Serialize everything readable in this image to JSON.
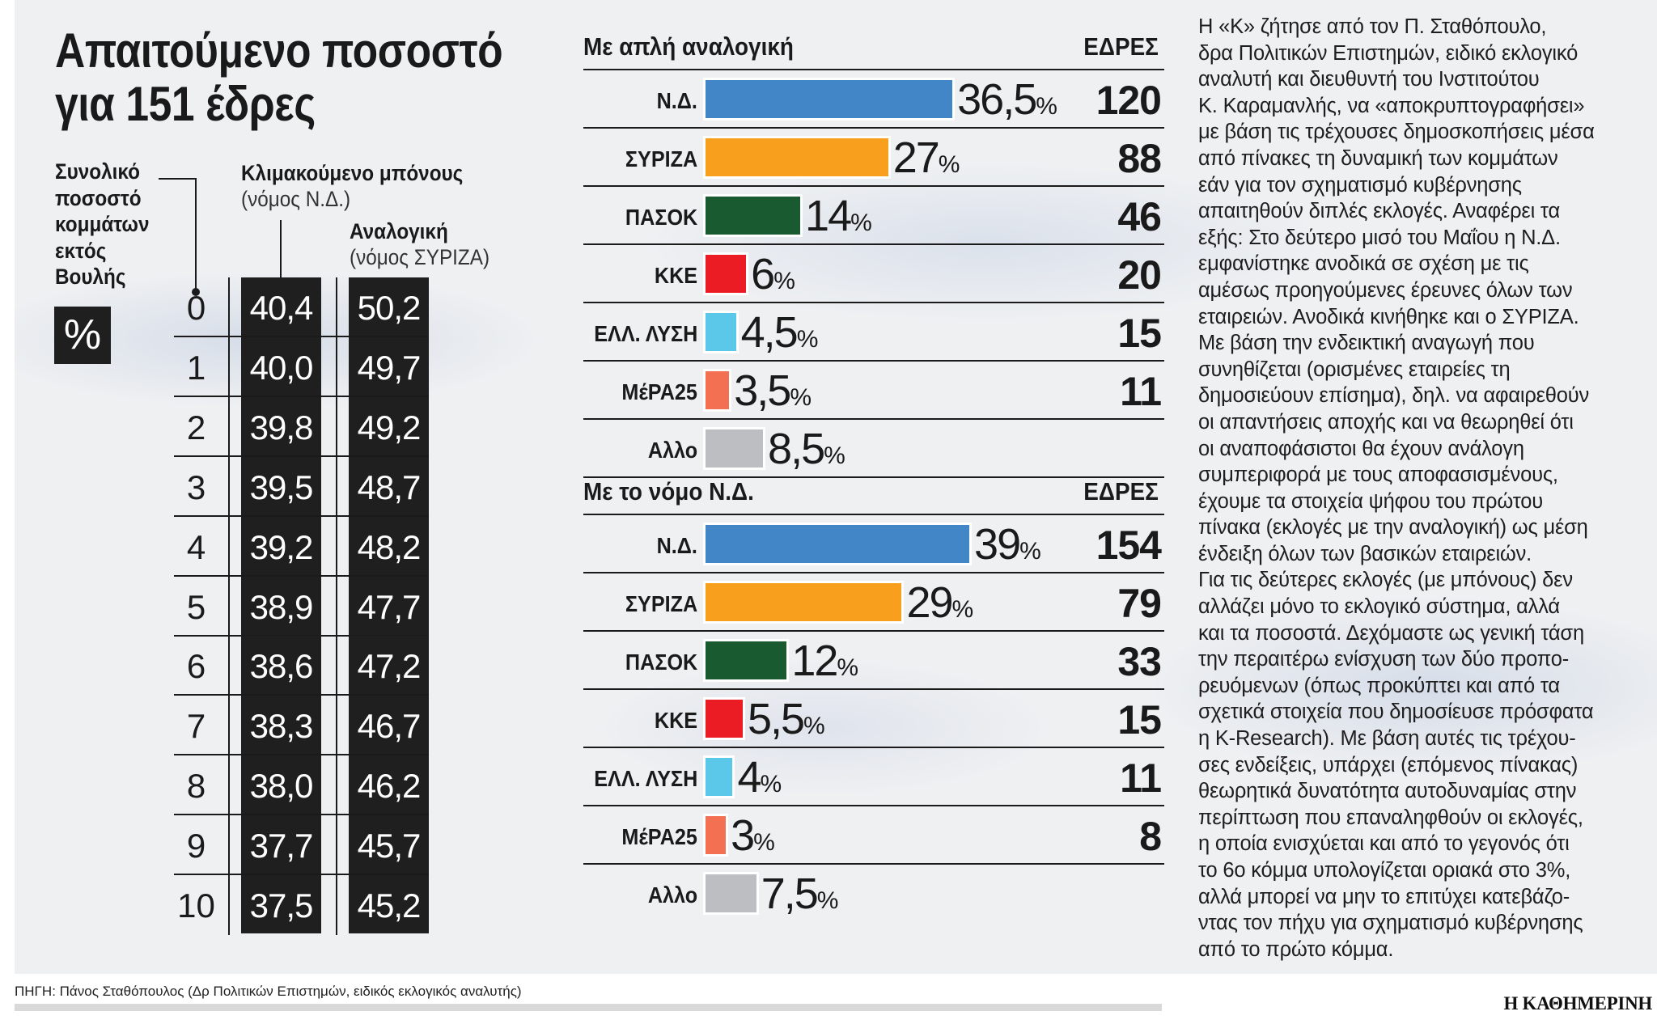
{
  "title": [
    "Απαιτούμενο ποσοστό",
    "για 151 έδρες"
  ],
  "left_table": {
    "row_label_lines": [
      "Συνολικό",
      "ποσοστό",
      "κομμάτων",
      "εκτός",
      "Βουλής"
    ],
    "unit": "%",
    "col1_title": "Κλιμακούμενο μπόνους",
    "col1_sub": "(νόμος Ν.Δ.)",
    "col2_title": "Αναλογική",
    "col2_sub": "(νόμος ΣΥΡΙΖΑ)",
    "rows": [
      {
        "idx": "0",
        "bonus": "40,4",
        "prop": "50,2"
      },
      {
        "idx": "1",
        "bonus": "40,0",
        "prop": "49,7"
      },
      {
        "idx": "2",
        "bonus": "39,8",
        "prop": "49,2"
      },
      {
        "idx": "3",
        "bonus": "39,5",
        "prop": "48,7"
      },
      {
        "idx": "4",
        "bonus": "39,2",
        "prop": "48,2"
      },
      {
        "idx": "5",
        "bonus": "38,9",
        "prop": "47,7"
      },
      {
        "idx": "6",
        "bonus": "38,6",
        "prop": "47,2"
      },
      {
        "idx": "7",
        "bonus": "38,3",
        "prop": "46,7"
      },
      {
        "idx": "8",
        "bonus": "38,0",
        "prop": "46,2"
      },
      {
        "idx": "9",
        "bonus": "37,7",
        "prop": "45,7"
      },
      {
        "idx": "10",
        "bonus": "37,5",
        "prop": "45,2"
      }
    ]
  },
  "chart_data": [
    {
      "type": "bar",
      "title": "Με απλή αναλογική",
      "seats_label": "ΕΔΡΕΣ",
      "categories": [
        "Ν.Δ.",
        "ΣΥΡΙΖΑ",
        "ΠΑΣΟΚ",
        "ΚΚΕ",
        "ΕΛΛ. ΛΥΣΗ",
        "ΜέΡΑ25",
        "Αλλο"
      ],
      "values": [
        36.5,
        27,
        14,
        6,
        4.5,
        3.5,
        8.5
      ],
      "value_labels": [
        "36,5",
        "27",
        "14",
        "6",
        "4,5",
        "3,5",
        "8,5"
      ],
      "seats": [
        "120",
        "88",
        "46",
        "20",
        "15",
        "11",
        ""
      ],
      "unit": "%"
    },
    {
      "type": "bar",
      "title": "Με το νόμο Ν.Δ.",
      "seats_label": "ΕΔΡΕΣ",
      "categories": [
        "Ν.Δ.",
        "ΣΥΡΙΖΑ",
        "ΠΑΣΟΚ",
        "ΚΚΕ",
        "ΕΛΛ. ΛΥΣΗ",
        "ΜέΡΑ25",
        "Αλλο"
      ],
      "values": [
        39,
        29,
        12,
        5.5,
        4,
        3,
        7.5
      ],
      "value_labels": [
        "39",
        "29",
        "12",
        "5,5",
        "4",
        "3",
        "7,5"
      ],
      "seats": [
        "154",
        "79",
        "33",
        "15",
        "11",
        "8",
        ""
      ],
      "unit": "%"
    }
  ],
  "party_colors": [
    "#4286c8",
    "#f8a01e",
    "#1a5a30",
    "#ec1c24",
    "#5bc8ea",
    "#f37052",
    "#bcbec2"
  ],
  "article_lines": [
    "Η «Κ» ζήτησε από τον Π. Σταθόπουλο,",
    "δρα Πολιτικών Επιστημών, ειδικό εκλογικό",
    "αναλυτή και διευθυντή του Ινστιτούτου",
    "Κ. Καραμανλής, να «αποκρυπτογραφήσει»",
    "με βάση τις τρέχουσες δημοσκοπήσεις μέσα",
    "από πίνακες τη δυναμική των κομμάτων",
    "εάν για τον σχηματισμό κυβέρνησης",
    "απαιτηθούν διπλές εκλογές. Αναφέρει τα",
    "εξής: Στο δεύτερο μισό του Μαΐου η Ν.Δ.",
    "εμφανίστηκε ανοδικά σε σχέση με τις",
    "αμέσως προηγούμενες έρευνες όλων των",
    "εταιρειών. Ανοδικά κινήθηκε και ο ΣΥΡΙΖΑ.",
    "Με βάση την ενδεικτική αναγωγή που",
    "συνηθίζεται (ορισμένες εταιρείες τη",
    "δημοσιεύουν επίσημα), δηλ. να αφαιρεθούν",
    "οι απαντήσεις αποχής και να θεωρηθεί ότι",
    "οι αναποφάσιστοι θα έχουν ανάλογη",
    "συμπεριφορά με τους αποφασισμένους,",
    "έχουμε τα στοιχεία ψήφου του πρώτου",
    "πίνακα (εκλογές με την αναλογική) ως μέση",
    "ένδειξη όλων των βασικών εταιρειών.",
    "Για τις δεύτερες εκλογές (με μπόνους) δεν",
    "αλλάζει μόνο το εκλογικό σύστημα, αλλά",
    "και τα ποσοστά. Δεχόμαστε ως γενική τάση",
    "την περαιτέρω ενίσχυση των δύο προπο-",
    "ρευόμενων (όπως προκύπτει και από τα",
    "σχετικά στοιχεία που δημοσίευσε πρόσφατα",
    "η K-Research). Με βάση αυτές τις τρέχου-",
    "σες ενδείξεις, υπάρχει (επόμενος πίνακας)",
    "θεωρητικά δυνατότητα αυτοδυναμίας στην",
    "περίπτωση που επαναληφθούν οι εκλογές,",
    "η οποία ενισχύεται και από το γεγονός ότι",
    "το 6ο κόμμα υπολογίζεται οριακά στο 3%,",
    "αλλά μπορεί να μην το επιτύχει κατεβάζο-",
    "ντας τον πήχυ για σχηματισμό κυβέρνησης",
    "από το πρώτο κόμμα."
  ],
  "source": "ΠΗΓΗ: Πάνος Σταθόπουλος (Δρ Πολιτικών Επιστημών, ειδικός εκλογικός αναλυτής)",
  "publisher": "Η ΚΑΘΗΜΕΡΙΝΗ"
}
